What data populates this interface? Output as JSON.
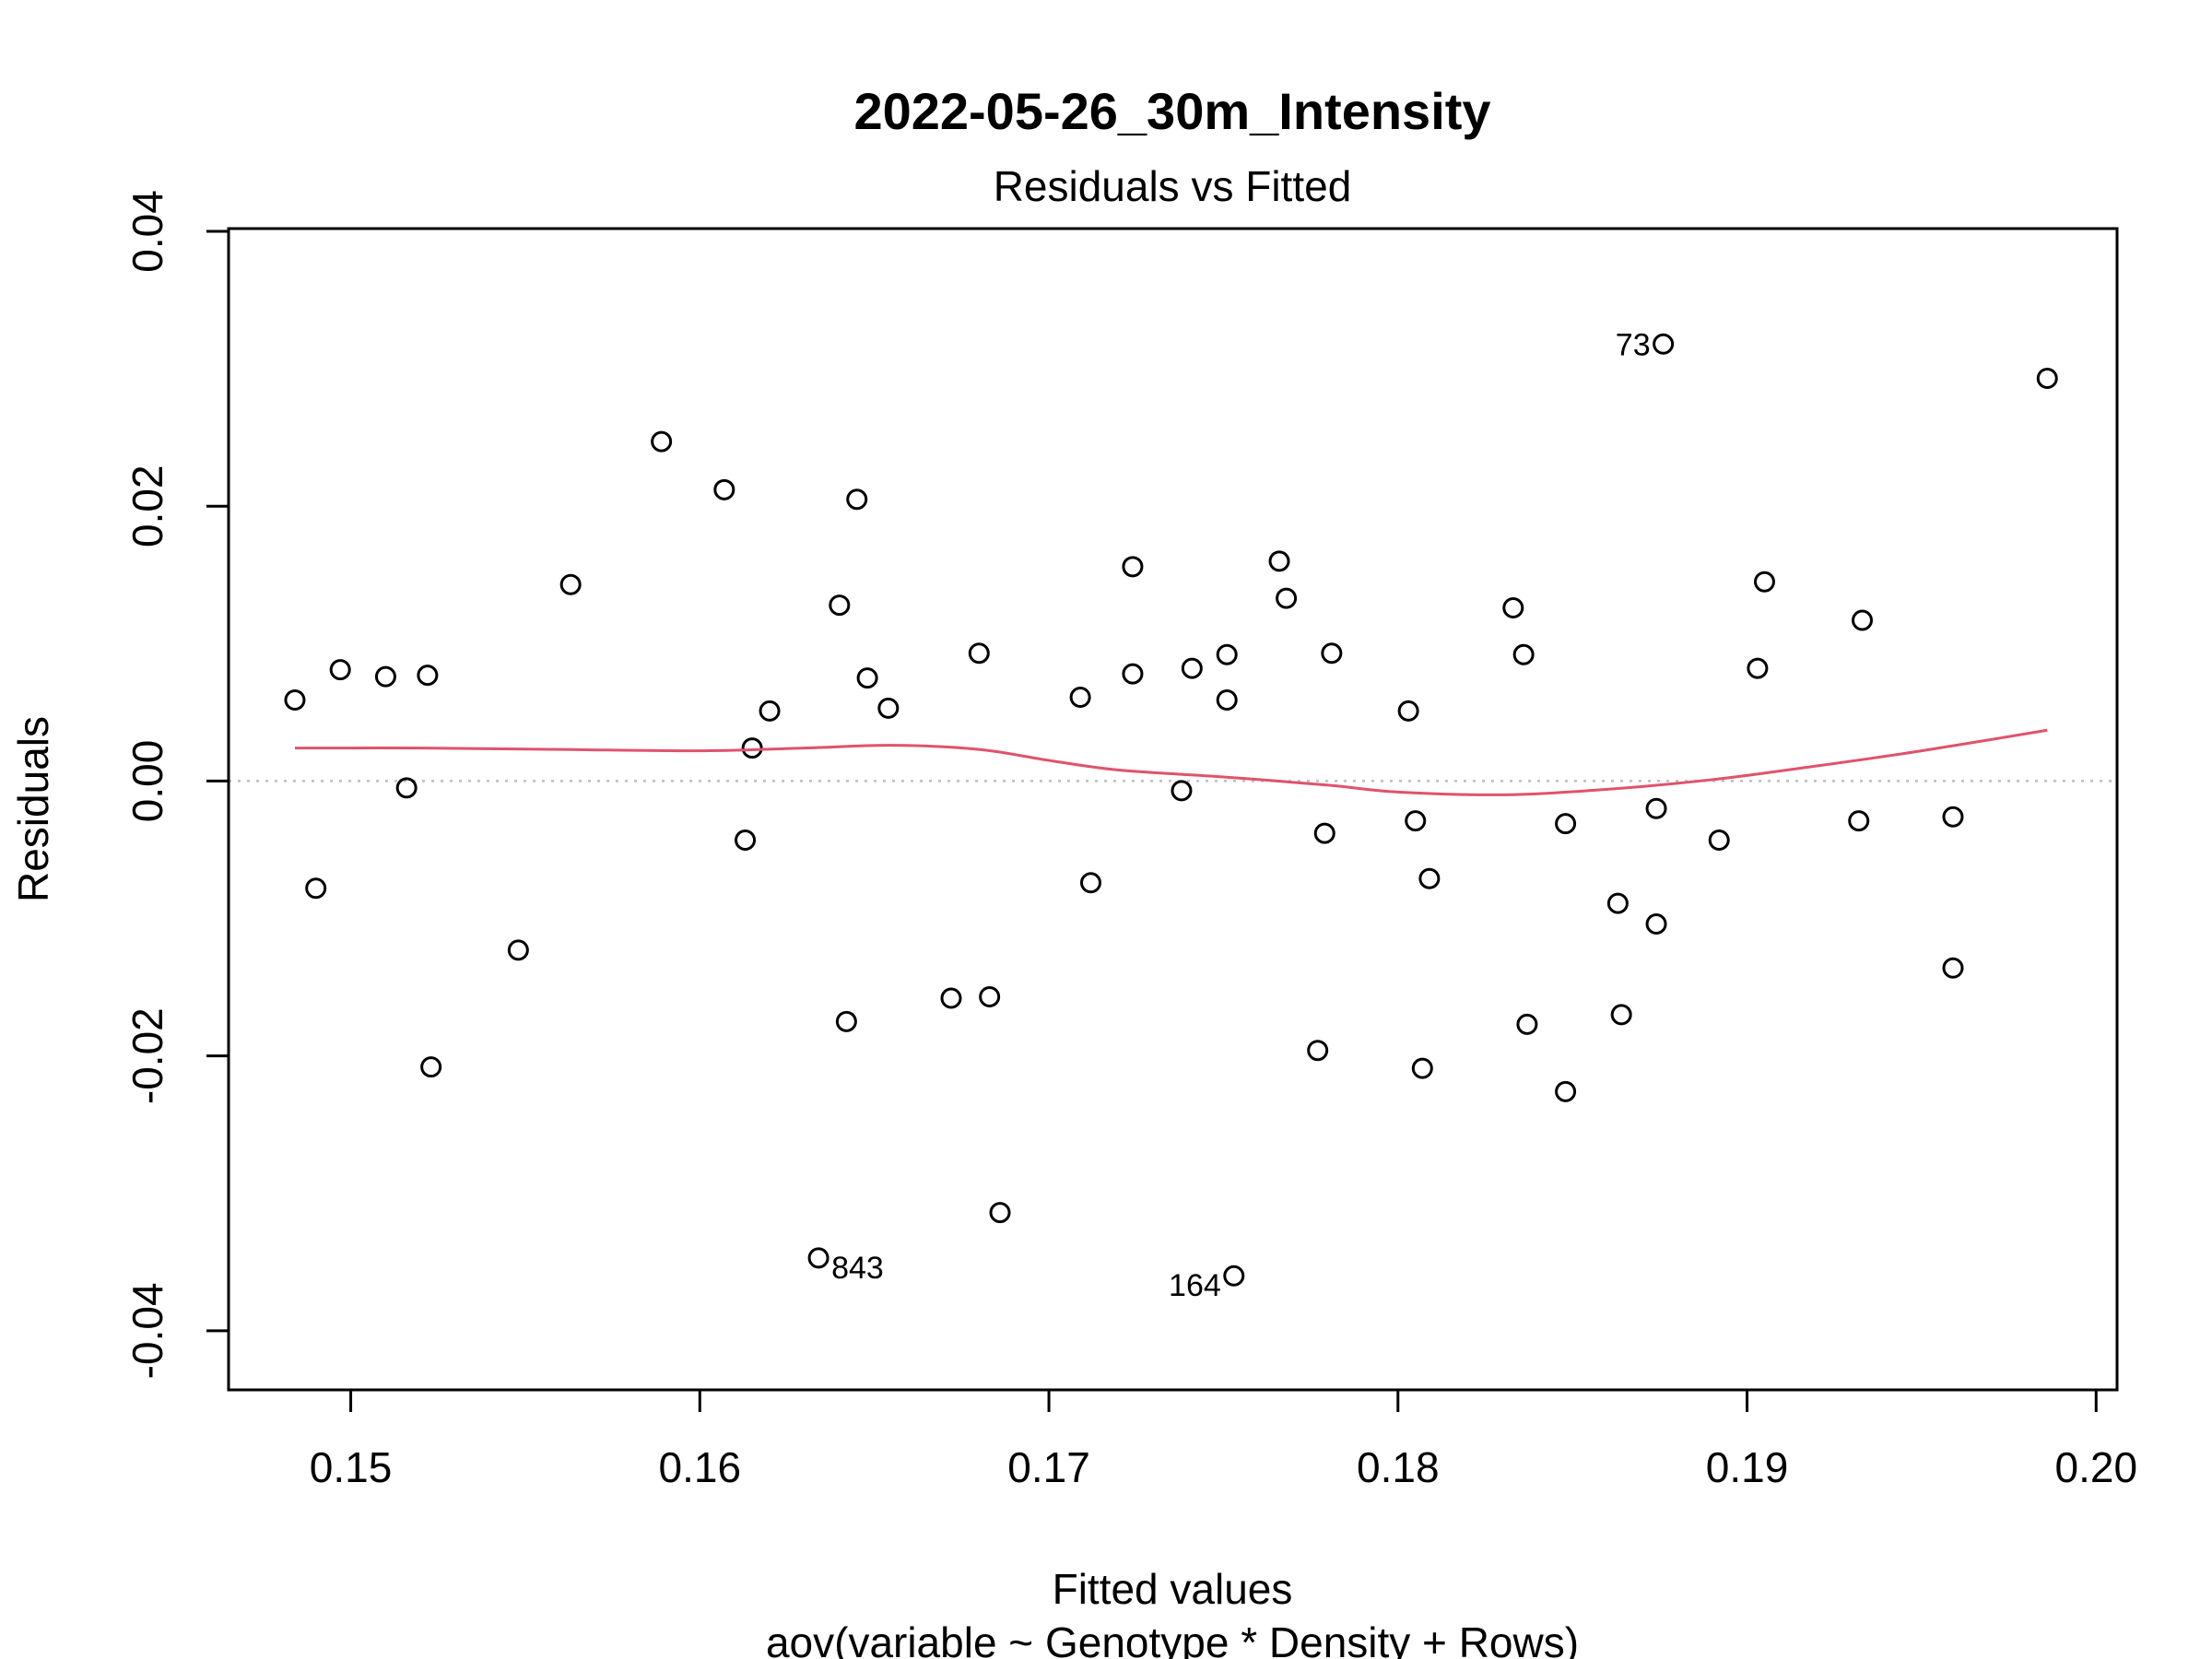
{
  "chart_data": {
    "type": "scatter",
    "title": "2022-05-26_30m_Intensity",
    "subtitle": "Residuals vs Fitted",
    "xlabel": "Fitted values",
    "xlabel_sub": "aov(variable ~ Genotype * Density + Rows)",
    "ylabel": "Residuals",
    "xlim": [
      0.1465,
      0.2006
    ],
    "ylim": [
      -0.0443,
      0.0402
    ],
    "x_ticks": [
      0.15,
      0.16,
      0.17,
      0.18,
      0.19,
      0.2
    ],
    "x_tick_labels": [
      "0.15",
      "0.16",
      "0.17",
      "0.18",
      "0.19",
      "0.20"
    ],
    "y_ticks": [
      -0.04,
      -0.02,
      0.0,
      0.02,
      0.04
    ],
    "y_tick_labels": [
      "-0.04",
      "-0.02",
      "0.00",
      "0.02",
      "0.04"
    ],
    "reference_line_y": 0.0,
    "grid": false,
    "points": [
      {
        "x": 0.1484,
        "y": 0.0059
      },
      {
        "x": 0.149,
        "y": -0.0078
      },
      {
        "x": 0.1497,
        "y": 0.0081
      },
      {
        "x": 0.151,
        "y": 0.0076
      },
      {
        "x": 0.1516,
        "y": -0.0005
      },
      {
        "x": 0.1522,
        "y": 0.0077
      },
      {
        "x": 0.1523,
        "y": -0.0208
      },
      {
        "x": 0.1548,
        "y": -0.0123
      },
      {
        "x": 0.1563,
        "y": 0.0143
      },
      {
        "x": 0.1589,
        "y": 0.0247
      },
      {
        "x": 0.1607,
        "y": 0.0212
      },
      {
        "x": 0.1613,
        "y": -0.0043
      },
      {
        "x": 0.1615,
        "y": 0.0024
      },
      {
        "x": 0.162,
        "y": 0.0051
      },
      {
        "x": 0.1634,
        "y": -0.0347,
        "label": "843"
      },
      {
        "x": 0.164,
        "y": 0.0128
      },
      {
        "x": 0.1642,
        "y": -0.0175
      },
      {
        "x": 0.1645,
        "y": 0.0205
      },
      {
        "x": 0.1648,
        "y": 0.0075
      },
      {
        "x": 0.1654,
        "y": 0.0053
      },
      {
        "x": 0.1672,
        "y": -0.0158
      },
      {
        "x": 0.168,
        "y": 0.0093
      },
      {
        "x": 0.1683,
        "y": -0.0157
      },
      {
        "x": 0.1686,
        "y": -0.0314
      },
      {
        "x": 0.1709,
        "y": 0.0061
      },
      {
        "x": 0.1712,
        "y": -0.0074
      },
      {
        "x": 0.1724,
        "y": 0.0156
      },
      {
        "x": 0.1724,
        "y": 0.0078
      },
      {
        "x": 0.1738,
        "y": -0.0007
      },
      {
        "x": 0.1741,
        "y": 0.0082
      },
      {
        "x": 0.1751,
        "y": 0.0092
      },
      {
        "x": 0.1751,
        "y": 0.0059
      },
      {
        "x": 0.1753,
        "y": -0.036,
        "label": "164"
      },
      {
        "x": 0.1766,
        "y": 0.016
      },
      {
        "x": 0.1768,
        "y": 0.0133
      },
      {
        "x": 0.1777,
        "y": -0.0196
      },
      {
        "x": 0.1779,
        "y": -0.0038
      },
      {
        "x": 0.1781,
        "y": 0.0093
      },
      {
        "x": 0.1803,
        "y": 0.0051
      },
      {
        "x": 0.1805,
        "y": -0.0029
      },
      {
        "x": 0.1807,
        "y": -0.0209
      },
      {
        "x": 0.1809,
        "y": -0.0071
      },
      {
        "x": 0.1833,
        "y": 0.0126
      },
      {
        "x": 0.1836,
        "y": 0.0092
      },
      {
        "x": 0.1837,
        "y": -0.0177
      },
      {
        "x": 0.1848,
        "y": -0.0031
      },
      {
        "x": 0.1848,
        "y": -0.0226
      },
      {
        "x": 0.1863,
        "y": -0.0089
      },
      {
        "x": 0.1864,
        "y": -0.017
      },
      {
        "x": 0.1874,
        "y": -0.002
      },
      {
        "x": 0.1874,
        "y": -0.0104
      },
      {
        "x": 0.1876,
        "y": 0.0318,
        "label": "73"
      },
      {
        "x": 0.1892,
        "y": -0.0043
      },
      {
        "x": 0.1903,
        "y": 0.0082
      },
      {
        "x": 0.1905,
        "y": 0.0145
      },
      {
        "x": 0.1932,
        "y": -0.0029
      },
      {
        "x": 0.1933,
        "y": 0.0117
      },
      {
        "x": 0.1959,
        "y": -0.0026
      },
      {
        "x": 0.1959,
        "y": -0.0136
      },
      {
        "x": 0.1986,
        "y": 0.0293
      }
    ],
    "smooth_line": {
      "color": "#df536b",
      "x": [
        0.1484,
        0.152,
        0.156,
        0.16,
        0.163,
        0.1655,
        0.168,
        0.17,
        0.172,
        0.175,
        0.178,
        0.18,
        0.183,
        0.186,
        0.189,
        0.192,
        0.195,
        0.1986
      ],
      "y": [
        0.0024,
        0.0024,
        0.0023,
        0.0022,
        0.0024,
        0.0026,
        0.0023,
        0.0015,
        0.0008,
        0.0003,
        -0.0003,
        -0.0008,
        -0.001,
        -0.0006,
        0.0001,
        0.0011,
        0.0022,
        0.0037
      ]
    }
  }
}
